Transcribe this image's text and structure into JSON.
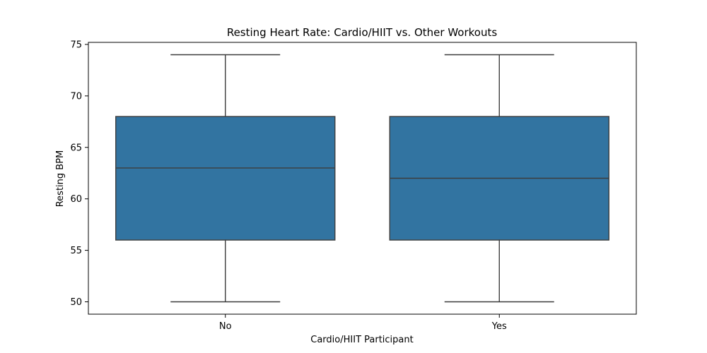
{
  "chart_data": {
    "type": "box",
    "title": "Resting Heart Rate: Cardio/HIIT vs. Other Workouts",
    "xlabel": "Cardio/HIIT Participant",
    "ylabel": "Resting BPM",
    "categories": [
      "No",
      "Yes"
    ],
    "boxes": [
      {
        "category": "No",
        "min": 50,
        "q1": 56,
        "median": 63,
        "q3": 68,
        "max": 74
      },
      {
        "category": "Yes",
        "min": 50,
        "q1": 56,
        "median": 62,
        "q3": 68,
        "max": 74
      }
    ],
    "ylim": [
      48.8,
      75.2
    ],
    "yticks": [
      50,
      55,
      60,
      65,
      70,
      75
    ],
    "grid": false,
    "colors": {
      "box_fill": "#3274a1",
      "line": "#3d3d3d",
      "axes": "#000000"
    }
  }
}
